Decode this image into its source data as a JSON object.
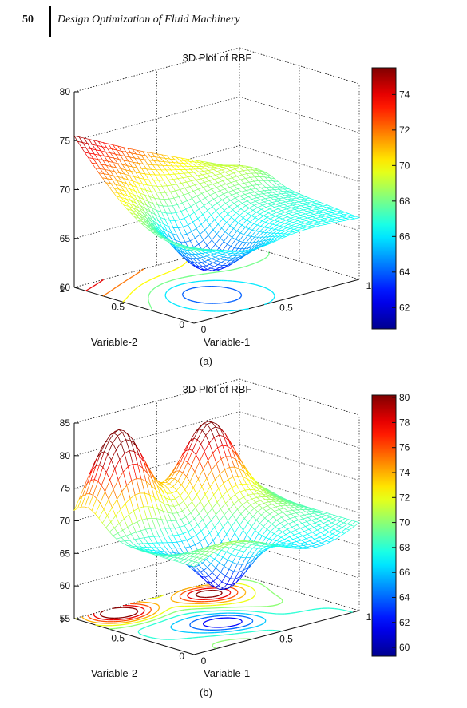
{
  "header": {
    "page_number": "50",
    "running_title": "Design Optimization of Fluid Machinery"
  },
  "chart_data": [
    {
      "type": "surface",
      "title": "3D Plot of RBF",
      "xlabel": "Variable-1",
      "ylabel": "Variable-2",
      "x_ticks": [
        "0",
        "0.5",
        "1"
      ],
      "y_ticks": [
        "0",
        "0.5",
        "1"
      ],
      "z_ticks": [
        "60",
        "65",
        "70",
        "75",
        "80"
      ],
      "zlim": [
        60,
        80
      ],
      "colorbar": {
        "ticks": [
          "62",
          "64",
          "66",
          "68",
          "70",
          "72",
          "74"
        ],
        "range": [
          60.8,
          75.5
        ]
      },
      "caption": "(a)",
      "colormap": [
        "#00008f",
        "#0000ff",
        "#00ffff",
        "#ffff00",
        "#ff0000",
        "#800000"
      ]
    },
    {
      "type": "surface",
      "title": "3D Plot of RBF",
      "xlabel": "Variable-1",
      "ylabel": "Variable-2",
      "x_ticks": [
        "0",
        "0.5",
        "1"
      ],
      "y_ticks": [
        "0",
        "0.5",
        "1"
      ],
      "z_ticks": [
        "55",
        "60",
        "65",
        "70",
        "75",
        "80",
        "85"
      ],
      "zlim": [
        55,
        85
      ],
      "colorbar": {
        "ticks": [
          "60",
          "62",
          "64",
          "66",
          "68",
          "70",
          "72",
          "74",
          "76",
          "78",
          "80"
        ],
        "range": [
          59.3,
          80.2
        ]
      },
      "caption": "(b)",
      "colormap": [
        "#00008f",
        "#0000ff",
        "#00ffff",
        "#ffff00",
        "#ff0000",
        "#800000"
      ]
    }
  ]
}
